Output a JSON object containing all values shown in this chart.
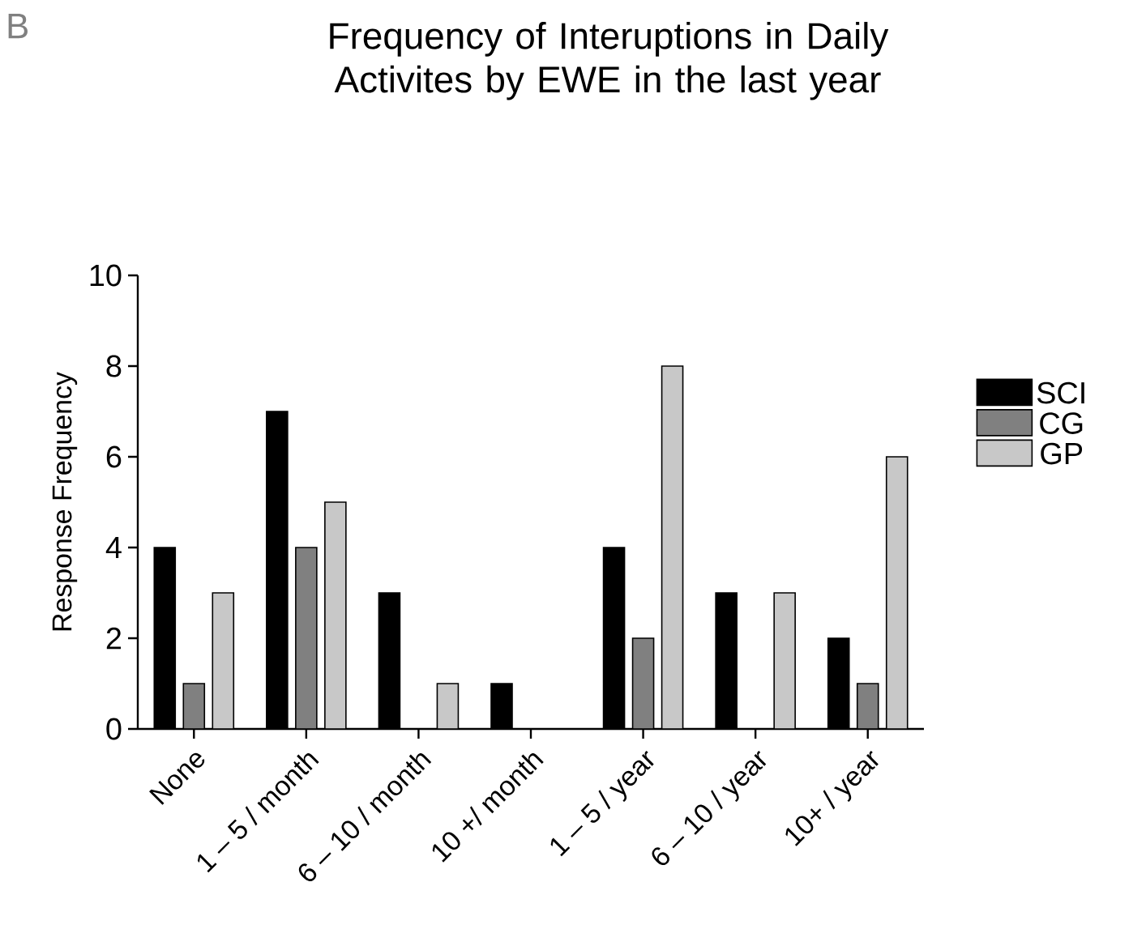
{
  "chart_data": {
    "type": "bar",
    "title": "Frequency of Interuptions in Daily Activites by EWE in the last year",
    "annotations": [
      "B"
    ],
    "ylabel": "Response Frequency",
    "categories": [
      "None",
      "1 – 5 / month",
      "6 – 10 / month",
      "10 +/ month",
      "1 – 5 / year",
      "6 – 10 / year",
      "10+ / year"
    ],
    "series": [
      {
        "name": "SCI",
        "color": "#000000",
        "values": [
          4,
          7,
          3,
          1,
          4,
          3,
          2
        ]
      },
      {
        "name": "CG",
        "color": "#808080",
        "values": [
          1,
          4,
          0,
          0,
          2,
          0,
          1
        ]
      },
      {
        "name": "GP",
        "color": "#c8c8c8",
        "values": [
          3,
          5,
          1,
          0,
          8,
          3,
          6
        ]
      }
    ],
    "ylim": [
      0,
      10
    ],
    "yticks": [
      0,
      2,
      4,
      6,
      8,
      10
    ],
    "legend": "right"
  }
}
